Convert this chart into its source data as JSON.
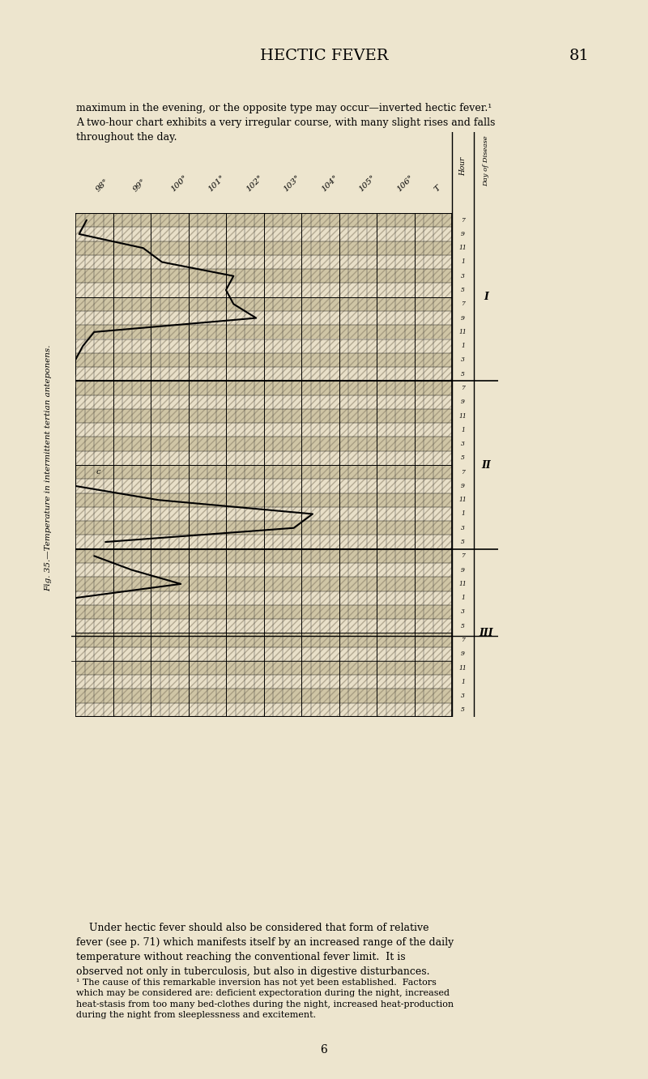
{
  "title": "HECTIC FEVER",
  "page_num": "81",
  "fig_label": "Fig. 35.—Temperature in intermittent tertian anteponens.",
  "day_label": "Day of Disease",
  "hour_label": "Hour",
  "temp_labels": [
    "98°",
    "99°",
    "100°",
    "101°",
    "102°",
    "103°",
    "104°",
    "105°",
    "106°",
    "T"
  ],
  "hours_per_day": [
    "7",
    "9",
    "11",
    "1",
    "3",
    "5",
    "7",
    "9",
    "11",
    "1",
    "3",
    "5"
  ],
  "days": [
    "I",
    "II",
    "III"
  ],
  "background_color": "#ede5ce",
  "chart_bg": "#e8dfc8",
  "hatch_bg": "#d4c8a8",
  "grid_color": "#111111",
  "n_subcols": 4,
  "curve_day1": [
    [
      0,
      98.3
    ],
    [
      1,
      98.1
    ],
    [
      2,
      99.8
    ],
    [
      3,
      100.3
    ],
    [
      4,
      102.2
    ],
    [
      5,
      102.0
    ],
    [
      6,
      102.2
    ],
    [
      7,
      102.8
    ],
    [
      8,
      98.5
    ],
    [
      9,
      98.2
    ],
    [
      10,
      98.0
    ],
    [
      11,
      98.0
    ]
  ],
  "curve_day2": [
    [
      0,
      98.0
    ],
    [
      1,
      98.0
    ],
    [
      2,
      98.0
    ],
    [
      3,
      98.0
    ],
    [
      4,
      98.0
    ],
    [
      5,
      98.0
    ],
    [
      6,
      98.0
    ],
    [
      7,
      98.0
    ],
    [
      8,
      100.2
    ],
    [
      9,
      104.3
    ],
    [
      10,
      103.8
    ],
    [
      11,
      98.8
    ]
  ],
  "curve_day3": [
    [
      0,
      98.5
    ],
    [
      1,
      99.5
    ],
    [
      2,
      100.8
    ],
    [
      3,
      98.0
    ],
    [
      4,
      98.0
    ],
    [
      5,
      98.0
    ],
    [
      6,
      98.0
    ],
    [
      7,
      98.0
    ],
    [
      8,
      98.0
    ],
    [
      9,
      98.0
    ],
    [
      10,
      98.0
    ],
    [
      11,
      98.0
    ]
  ],
  "c_label_hour": 6,
  "c_label_temp": 98.6,
  "temp_min": 98.0,
  "temp_max": 107.0,
  "n_temp_cols": 10
}
